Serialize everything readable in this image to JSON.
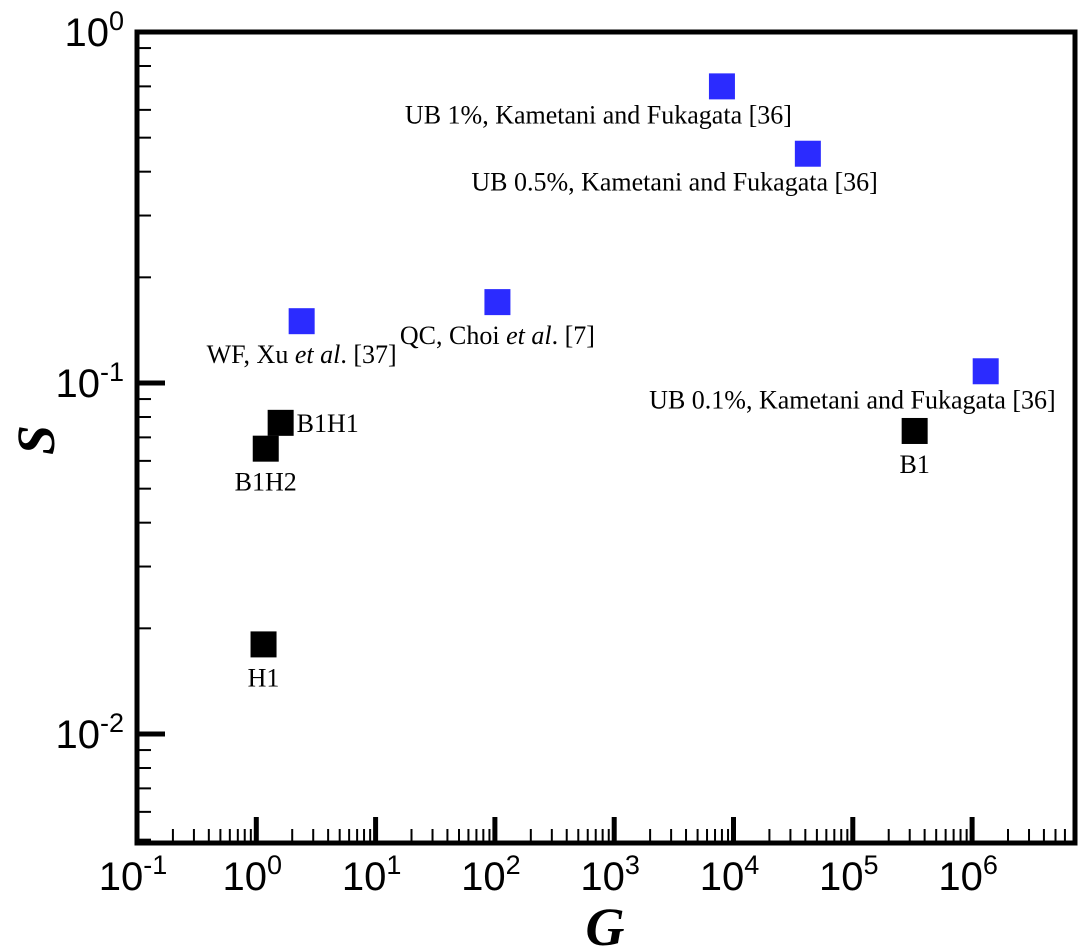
{
  "chart_data": {
    "type": "scatter",
    "title": "",
    "xlabel": "G",
    "ylabel": "S",
    "x_scale": "log",
    "y_scale": "log",
    "xlim": [
      0.1,
      6000000
    ],
    "ylim": [
      0.005,
      1
    ],
    "grid": false,
    "x_ticks": [
      {
        "base": "10",
        "exp": "-1"
      },
      {
        "base": "10",
        "exp": "0"
      },
      {
        "base": "10",
        "exp": "1"
      },
      {
        "base": "10",
        "exp": "2"
      },
      {
        "base": "10",
        "exp": "3"
      },
      {
        "base": "10",
        "exp": "4"
      },
      {
        "base": "10",
        "exp": "5"
      },
      {
        "base": "10",
        "exp": "6"
      }
    ],
    "y_ticks": [
      {
        "base": "10",
        "exp": "0"
      },
      {
        "base": "10",
        "exp": "-1"
      },
      {
        "base": "10",
        "exp": "-2"
      }
    ],
    "series": [
      {
        "color": "#2b2bff",
        "points": [
          {
            "x": 8000,
            "y": 0.7,
            "label": "UB 1%, Kametani and Fukagata [36]",
            "label_pos": "below-left"
          },
          {
            "x": 42000,
            "y": 0.45,
            "label": "UB 0.5%, Kametani and Fukagata [36]",
            "label_pos": "below-left"
          },
          {
            "x": 2.4,
            "y": 0.15,
            "label_parts": [
              "WF, Xu ",
              "et al",
              ". [37]"
            ],
            "label_pos": "below"
          },
          {
            "x": 105,
            "y": 0.17,
            "label_parts": [
              "QC, Choi ",
              "et al",
              ". [7]"
            ],
            "label_pos": "below"
          },
          {
            "x": 1300000,
            "y": 0.108,
            "label": "UB 0.1%, Kametani and Fukagata [36]",
            "label_pos": "below-left"
          }
        ]
      },
      {
        "color": "#000000",
        "points": [
          {
            "x": 1.6,
            "y": 0.077,
            "label": "B1H1",
            "label_pos": "right"
          },
          {
            "x": 1.2,
            "y": 0.065,
            "label": "B1H2",
            "label_pos": "below"
          },
          {
            "x": 1.15,
            "y": 0.018,
            "label": "H1",
            "label_pos": "below"
          },
          {
            "x": 330000,
            "y": 0.073,
            "label": "B1",
            "label_pos": "below"
          }
        ]
      }
    ]
  }
}
